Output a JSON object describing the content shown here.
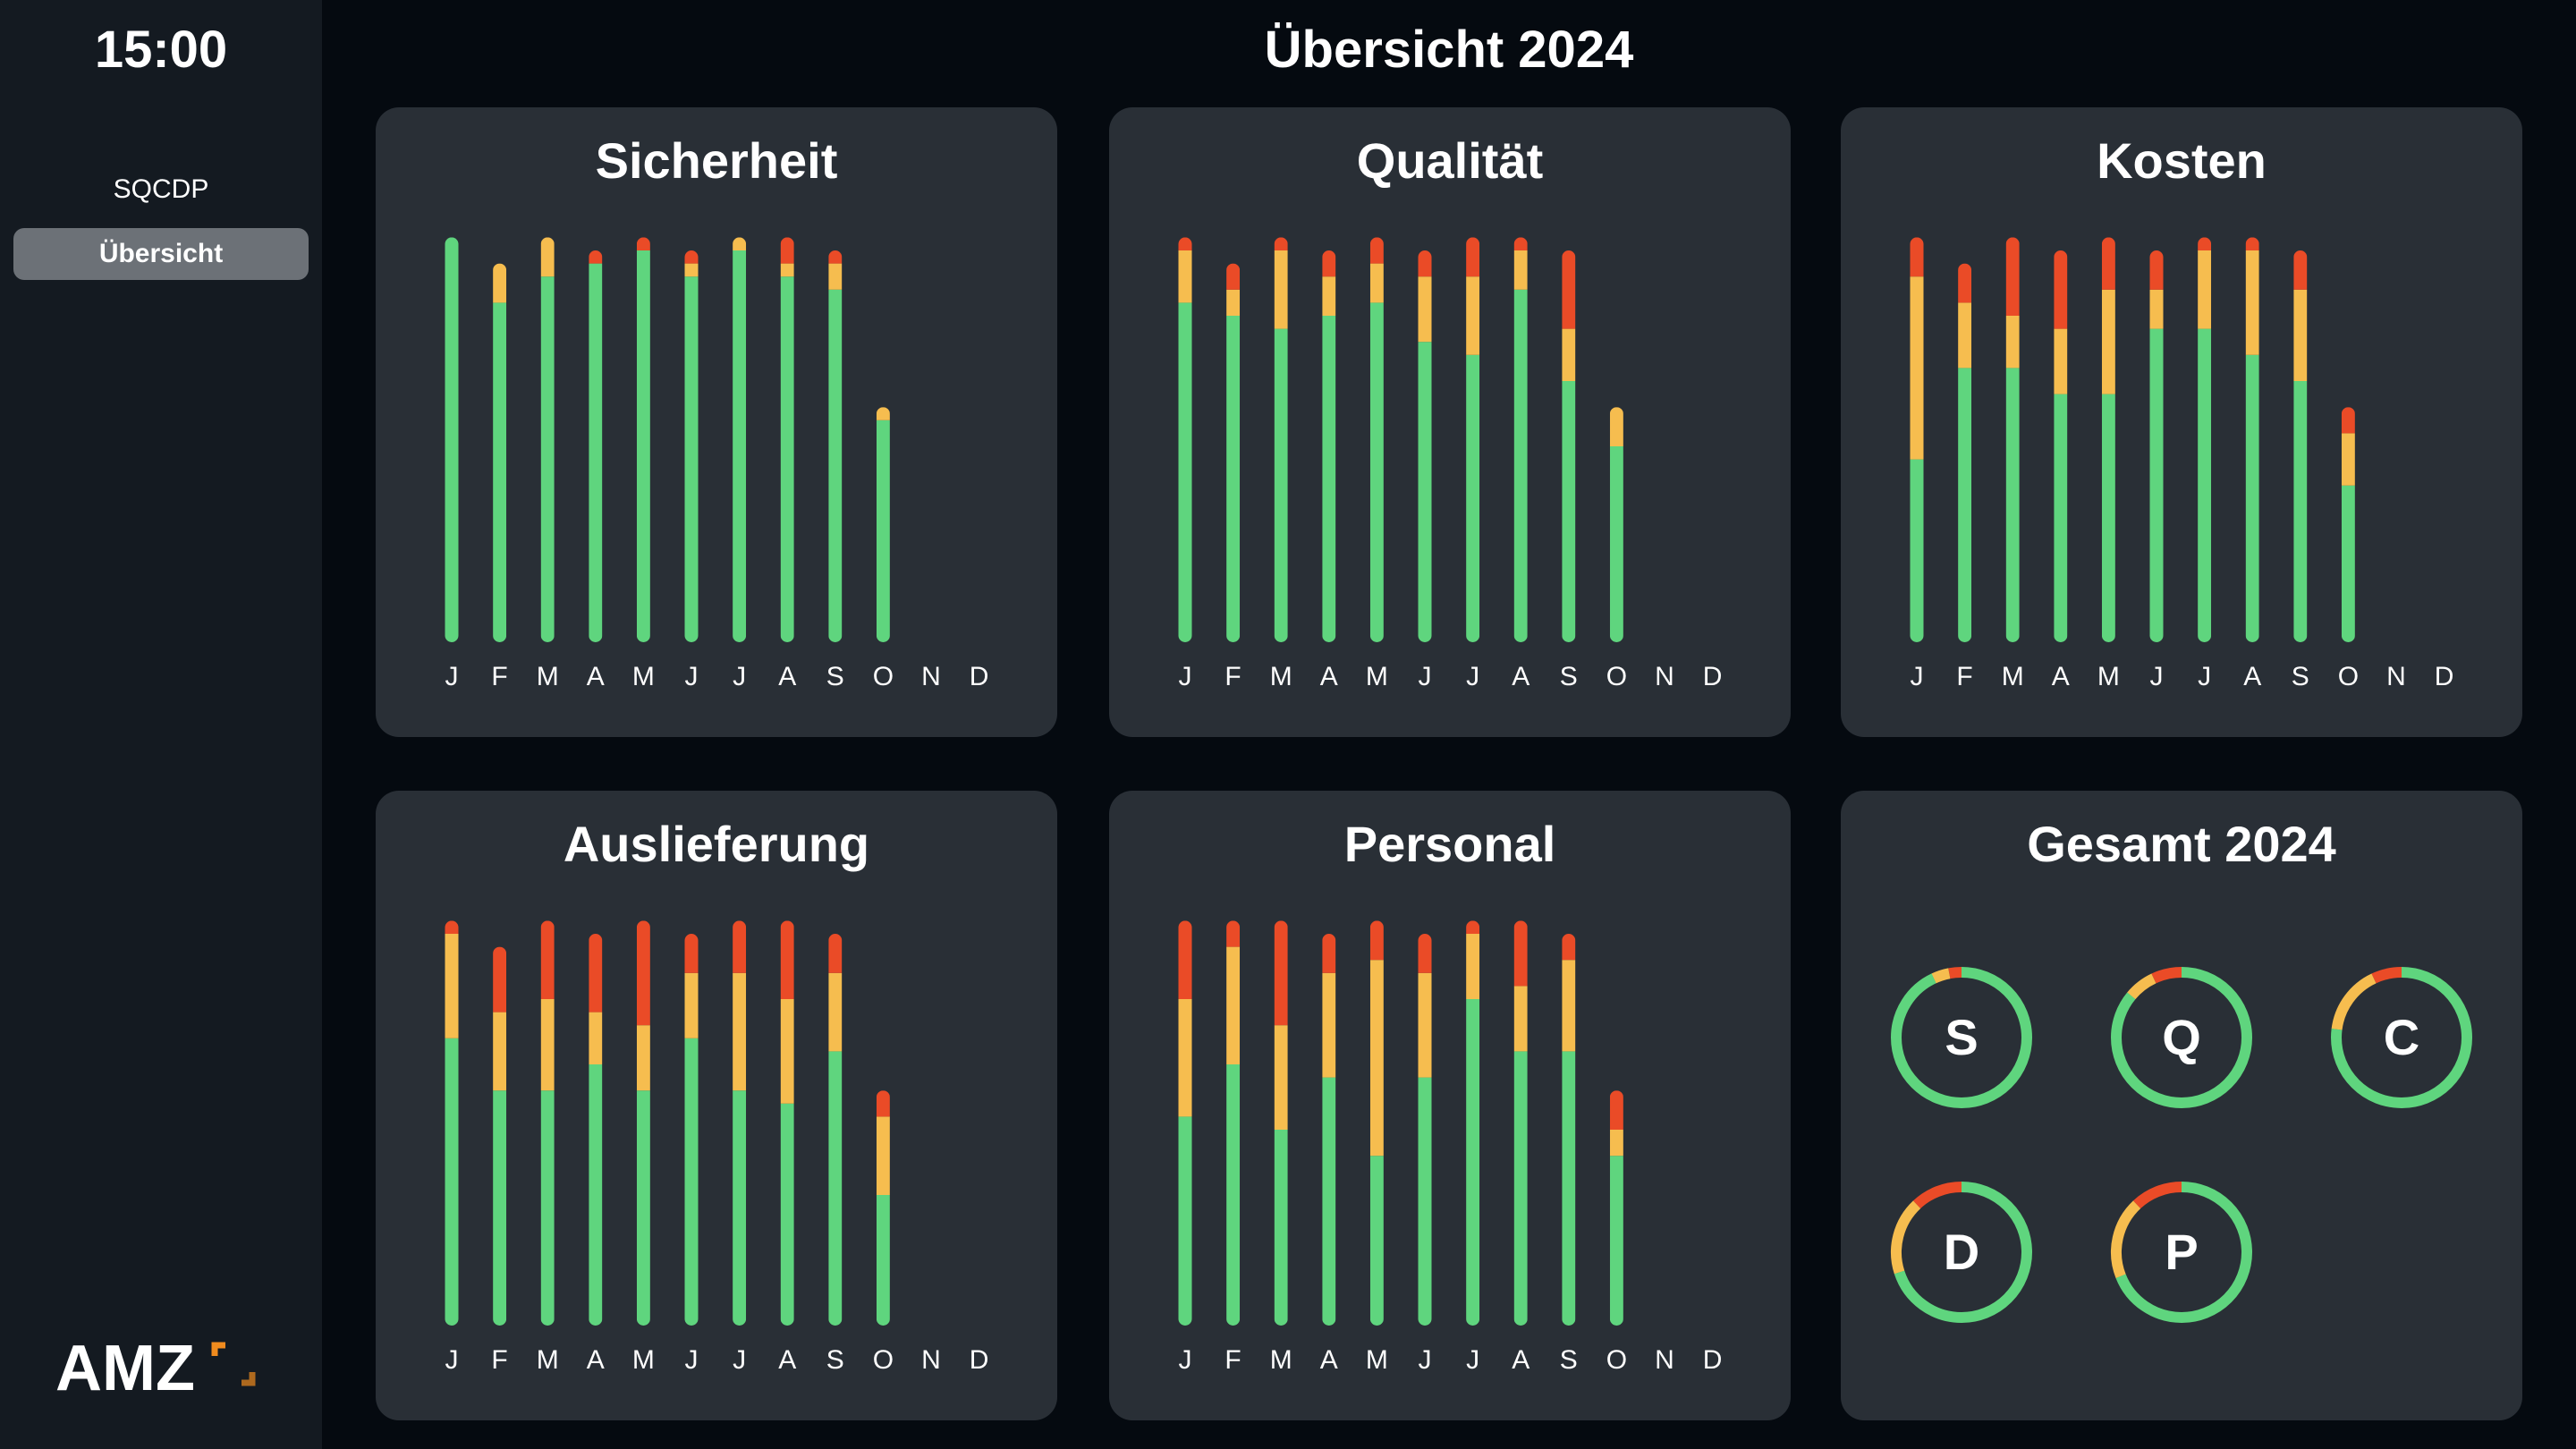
{
  "clock": "15:00",
  "sidebar": {
    "items": [
      {
        "label": "SQCDP",
        "active": false
      },
      {
        "label": "Übersicht",
        "active": true
      }
    ]
  },
  "logo": {
    "text": "AMZ"
  },
  "page_title": "Übersicht 2024",
  "colors": {
    "green": "#5fd57e",
    "yellow": "#f6bd4f",
    "red": "#ea4b27",
    "card": "#292f36"
  },
  "months": [
    "J",
    "F",
    "M",
    "A",
    "M",
    "J",
    "J",
    "A",
    "S",
    "O",
    "N",
    "D"
  ],
  "charts": {
    "sicherheit": {
      "title": "Sicherheit"
    },
    "qualitaet": {
      "title": "Qualität"
    },
    "kosten": {
      "title": "Kosten"
    },
    "auslieferung": {
      "title": "Auslieferung"
    },
    "personal": {
      "title": "Personal"
    }
  },
  "chart_data": [
    {
      "id": "sicherheit",
      "type": "bar",
      "stacked": true,
      "title": "Sicherheit",
      "categories": [
        "J",
        "F",
        "M",
        "A",
        "M",
        "J",
        "J",
        "A",
        "S",
        "O",
        "N",
        "D"
      ],
      "series": [
        {
          "color": "green",
          "values": [
            31,
            26,
            28,
            29,
            30,
            28,
            30,
            28,
            27,
            17,
            null,
            null
          ]
        },
        {
          "color": "yellow",
          "values": [
            0,
            3,
            3,
            0,
            0,
            1,
            1,
            1,
            2,
            1,
            null,
            null
          ]
        },
        {
          "color": "red",
          "values": [
            0,
            0,
            0,
            1,
            1,
            1,
            0,
            2,
            1,
            0,
            null,
            null
          ]
        }
      ]
    },
    {
      "id": "qualitaet",
      "type": "bar",
      "stacked": true,
      "title": "Qualität",
      "categories": [
        "J",
        "F",
        "M",
        "A",
        "M",
        "J",
        "J",
        "A",
        "S",
        "O",
        "N",
        "D"
      ],
      "series": [
        {
          "color": "green",
          "values": [
            26,
            25,
            24,
            25,
            26,
            23,
            22,
            27,
            20,
            15,
            null,
            null
          ]
        },
        {
          "color": "yellow",
          "values": [
            4,
            2,
            6,
            3,
            3,
            5,
            6,
            3,
            4,
            3,
            null,
            null
          ]
        },
        {
          "color": "red",
          "values": [
            1,
            2,
            1,
            2,
            2,
            2,
            3,
            1,
            6,
            0,
            null,
            null
          ]
        }
      ]
    },
    {
      "id": "kosten",
      "type": "bar",
      "stacked": true,
      "title": "Kosten",
      "categories": [
        "J",
        "F",
        "M",
        "A",
        "M",
        "J",
        "J",
        "A",
        "S",
        "O",
        "N",
        "D"
      ],
      "series": [
        {
          "color": "green",
          "values": [
            14,
            21,
            21,
            19,
            19,
            24,
            24,
            22,
            20,
            12,
            null,
            null
          ]
        },
        {
          "color": "yellow",
          "values": [
            14,
            5,
            4,
            5,
            8,
            3,
            6,
            8,
            7,
            4,
            null,
            null
          ]
        },
        {
          "color": "red",
          "values": [
            3,
            3,
            6,
            6,
            4,
            3,
            1,
            1,
            3,
            2,
            null,
            null
          ]
        }
      ]
    },
    {
      "id": "auslieferung",
      "type": "bar",
      "stacked": true,
      "title": "Auslieferung",
      "categories": [
        "J",
        "F",
        "M",
        "A",
        "M",
        "J",
        "J",
        "A",
        "S",
        "O",
        "N",
        "D"
      ],
      "series": [
        {
          "color": "green",
          "values": [
            22,
            18,
            18,
            20,
            18,
            22,
            18,
            17,
            21,
            10,
            null,
            null
          ]
        },
        {
          "color": "yellow",
          "values": [
            8,
            6,
            7,
            4,
            5,
            5,
            9,
            8,
            6,
            6,
            null,
            null
          ]
        },
        {
          "color": "red",
          "values": [
            1,
            5,
            6,
            6,
            8,
            3,
            4,
            6,
            3,
            2,
            null,
            null
          ]
        }
      ]
    },
    {
      "id": "personal",
      "type": "bar",
      "stacked": true,
      "title": "Personal",
      "categories": [
        "J",
        "F",
        "M",
        "A",
        "M",
        "J",
        "J",
        "A",
        "S",
        "O",
        "N",
        "D"
      ],
      "series": [
        {
          "color": "green",
          "values": [
            16,
            20,
            15,
            19,
            13,
            19,
            25,
            21,
            21,
            13,
            null,
            null
          ]
        },
        {
          "color": "yellow",
          "values": [
            9,
            9,
            8,
            8,
            15,
            8,
            5,
            5,
            7,
            2,
            null,
            null
          ]
        },
        {
          "color": "red",
          "values": [
            6,
            2,
            8,
            3,
            3,
            3,
            1,
            5,
            2,
            3,
            null,
            null
          ]
        }
      ]
    },
    {
      "id": "gesamt",
      "type": "pie",
      "variant": "donut",
      "title": "Gesamt 2024",
      "categories": [
        "S",
        "Q",
        "C",
        "D",
        "P"
      ],
      "series": [
        {
          "color": "green",
          "values": [
            93,
            86,
            77,
            70,
            69
          ]
        },
        {
          "color": "yellow",
          "values": [
            4,
            7,
            16,
            18,
            19
          ]
        },
        {
          "color": "red",
          "values": [
            3,
            7,
            7,
            12,
            12
          ]
        }
      ]
    }
  ],
  "gesamt": {
    "title": "Gesamt 2024",
    "letters": [
      "S",
      "Q",
      "C",
      "D",
      "P"
    ]
  }
}
